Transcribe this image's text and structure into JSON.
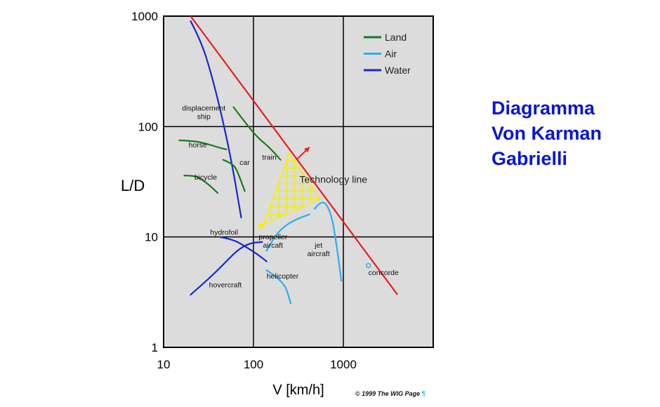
{
  "side_title": [
    "Diagramma",
    "Von Karman",
    "Gabrielli"
  ],
  "copyright": "© 1999 The WIG Page",
  "copyright_mark": "¶",
  "chart_data": {
    "type": "line",
    "xlabel": "V [km/h]",
    "ylabel": "L/D",
    "xscale": "log",
    "yscale": "log",
    "xlim": [
      10,
      10000
    ],
    "ylim": [
      1,
      1000
    ],
    "xticks": [
      {
        "v": 10,
        "label": "10"
      },
      {
        "v": 100,
        "label": "100"
      },
      {
        "v": 1000,
        "label": "1000"
      }
    ],
    "yticks": [
      {
        "v": 1,
        "label": "1"
      },
      {
        "v": 10,
        "label": "10"
      },
      {
        "v": 100,
        "label": "100"
      },
      {
        "v": 1000,
        "label": "1000"
      }
    ],
    "grid": true,
    "legend_position": "top-right",
    "legend": [
      {
        "name": "Land",
        "color": "#1a7a1a"
      },
      {
        "name": "Air",
        "color": "#2ab0e8"
      },
      {
        "name": "Water",
        "color": "#1a28c8"
      }
    ],
    "series": [
      {
        "group": "Water",
        "label": "displacement ship",
        "label_at": [
          28,
          140
        ],
        "points": [
          [
            20,
            900
          ],
          [
            26,
            600
          ],
          [
            34,
            300
          ],
          [
            45,
            120
          ],
          [
            58,
            45
          ],
          [
            73,
            15
          ]
        ]
      },
      {
        "group": "Water",
        "label": "hydrofoil",
        "label_at": [
          33,
          10.5
        ],
        "points": [
          [
            42,
            10
          ],
          [
            60,
            9.5
          ],
          [
            85,
            8
          ],
          [
            110,
            7
          ],
          [
            140,
            6
          ]
        ]
      },
      {
        "group": "Water",
        "label": "hovercraft",
        "label_at": [
          32,
          3.5
        ],
        "points": [
          [
            20,
            3
          ],
          [
            30,
            4
          ],
          [
            45,
            5.5
          ],
          [
            65,
            7.5
          ],
          [
            90,
            8.8
          ],
          [
            125,
            9
          ]
        ]
      },
      {
        "group": "Land",
        "label": "horse",
        "label_at": [
          19,
          65
        ],
        "points": [
          [
            15,
            75
          ],
          [
            22,
            74
          ],
          [
            30,
            70
          ],
          [
            40,
            65
          ],
          [
            50,
            62
          ]
        ]
      },
      {
        "group": "Land",
        "label": "car",
        "label_at": [
          70,
          45
        ],
        "points": [
          [
            46,
            50
          ],
          [
            55,
            47
          ],
          [
            63,
            43
          ],
          [
            70,
            35
          ],
          [
            80,
            26
          ]
        ]
      },
      {
        "group": "Land",
        "label": "bicycle",
        "label_at": [
          22,
          33
        ],
        "points": [
          [
            17,
            36
          ],
          [
            22,
            36
          ],
          [
            27,
            33
          ],
          [
            33,
            29
          ],
          [
            40,
            25
          ]
        ]
      },
      {
        "group": "Land",
        "label": "train",
        "label_at": [
          125,
          50
        ],
        "points": [
          [
            60,
            150
          ],
          [
            80,
            110
          ],
          [
            110,
            80
          ],
          [
            150,
            65
          ],
          [
            200,
            50
          ]
        ]
      },
      {
        "group": "Air",
        "label": "propeller aircaft",
        "label_at": [
          165,
          9.5
        ],
        "points": [
          [
            140,
            7.5
          ],
          [
            170,
            10
          ],
          [
            220,
            12.5
          ],
          [
            300,
            14.5
          ],
          [
            420,
            16
          ]
        ]
      },
      {
        "group": "Air",
        "label": "jet aircraft",
        "label_at": [
          530,
          8
        ],
        "points": [
          [
            480,
            18
          ],
          [
            560,
            21
          ],
          [
            650,
            20
          ],
          [
            750,
            15
          ],
          [
            850,
            8
          ],
          [
            950,
            4
          ]
        ]
      },
      {
        "group": "Air",
        "label": "helicopter",
        "label_at": [
          140,
          4.2
        ],
        "points": [
          [
            140,
            5
          ],
          [
            170,
            4.5
          ],
          [
            200,
            4
          ],
          [
            230,
            3.5
          ],
          [
            260,
            2.5
          ]
        ]
      },
      {
        "group": "Air",
        "label": "concorde",
        "label_at": [
          1900,
          4.5
        ],
        "points": [
          [
            1900,
            5.5
          ]
        ],
        "marker": "circle"
      }
    ],
    "technology_line": {
      "label": "Technology line",
      "color": "#e81e1e",
      "points": [
        [
          20,
          1000
        ],
        [
          4000,
          3
        ]
      ]
    },
    "improvement_zone": {
      "color": "#f4f000",
      "polygon": [
        [
          250,
          58
        ],
        [
          550,
          22
        ],
        [
          130,
          13
        ]
      ],
      "arrow_to": [
        120,
        12
      ]
    },
    "tech_arrow": {
      "from": [
        300,
        50
      ],
      "to": [
        420,
        65
      ],
      "color": "#e81e1e"
    }
  }
}
